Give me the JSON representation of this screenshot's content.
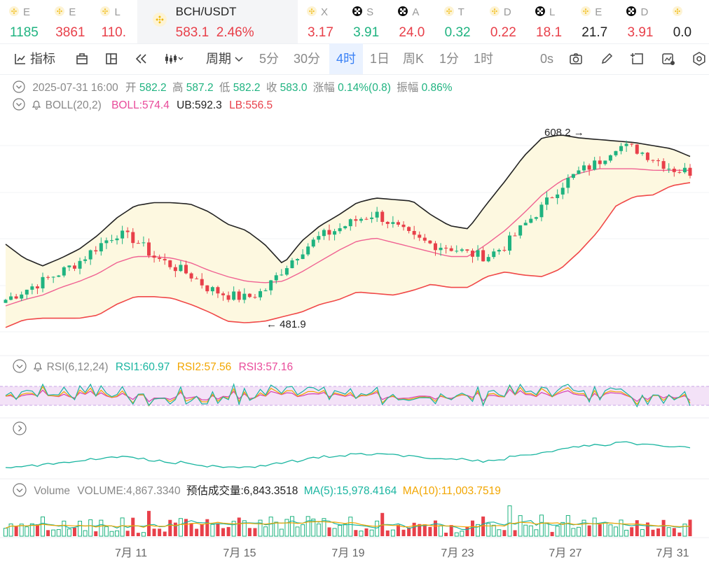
{
  "tickers": [
    {
      "sym": "E",
      "price": "1185",
      "color": "green",
      "icon": "binance-icon"
    },
    {
      "sym": "E",
      "price": "3861",
      "color": "red",
      "icon": "binance-icon"
    },
    {
      "sym": "L",
      "price": "110.",
      "color": "red",
      "icon": "binance-icon"
    }
  ],
  "active": {
    "pair": "BCH/USDT",
    "price": "583.1",
    "change": "2.46%",
    "icon": "binance-icon"
  },
  "tickers2": [
    {
      "sym": "X",
      "price": "3.17",
      "color": "red",
      "icon": "binance-icon"
    },
    {
      "sym": "S",
      "price": "3.91",
      "color": "green",
      "icon": "okx-icon"
    },
    {
      "sym": "A",
      "price": "24.0",
      "color": "red",
      "icon": "okx-icon"
    },
    {
      "sym": "T",
      "price": "0.32",
      "color": "green",
      "icon": "binance-icon"
    },
    {
      "sym": "D",
      "price": "0.22",
      "color": "red",
      "icon": "binance-icon"
    },
    {
      "sym": "L",
      "price": "18.1",
      "color": "red",
      "icon": "okx-icon"
    },
    {
      "sym": "E",
      "price": "21.7",
      "color": "dark",
      "icon": "binance-icon"
    },
    {
      "sym": "D",
      "price": "3.91",
      "color": "red",
      "icon": "okx-icon"
    },
    {
      "sym": "",
      "price": "0.0",
      "color": "dark",
      "icon": "binance-icon"
    }
  ],
  "toolbar": {
    "indicator": "指标",
    "period": "周期",
    "p1": "5分",
    "p2": "30分",
    "p3": "4时",
    "p4": "1日",
    "p5": "周K",
    "p6": "1分",
    "p7": "1时",
    "zero": "0s"
  },
  "ohlc": {
    "date": "2025-07-31 16:00",
    "open_l": "开",
    "open": "582.2",
    "high_l": "高",
    "high": "587.2",
    "low_l": "低",
    "low": "582.2",
    "close_l": "收",
    "close": "583.0",
    "chg_l": "涨幅",
    "chg": "0.14%(0.8)",
    "amp_l": "振幅",
    "amp": "0.86%"
  },
  "boll": {
    "name": "BOLL(20,2)",
    "boll": "BOLL:574.4",
    "ub": "UB:592.3",
    "lb": "LB:556.5"
  },
  "rsi": {
    "name": "RSI(6,12,24)",
    "r1": "RSI1:60.97",
    "r2": "RSI2:57.56",
    "r3": "RSI3:57.16"
  },
  "vol": {
    "name": "Volume",
    "v": "VOLUME:4,867.3340",
    "est": "预估成交量:6,843.3518",
    "ma5": "MA(5):15,978.4164",
    "ma10": "MA(10):11,003.7519"
  },
  "marks": {
    "high": "608.2",
    "low": "481.9"
  },
  "colors": {
    "up": "#1fb380",
    "down": "#e8404a",
    "mid": "#f06292",
    "upper": "#222222",
    "lower": "#f04848",
    "band": "#fdf8e0",
    "rsi1": "#19b5a0",
    "rsi2": "#f2a600",
    "rsi3": "#d63fb0"
  },
  "chart_data": {
    "type": "candlestick",
    "interval": "4h",
    "xticks": [
      "7月 11",
      "7月 15",
      "7月 19",
      "7月 23",
      "7月 27",
      "7月 31"
    ],
    "close_anchors": [
      500,
      506,
      512,
      518,
      525,
      535,
      543,
      539,
      528,
      522,
      516,
      507,
      503,
      501,
      506,
      520,
      532,
      541,
      546,
      552,
      556,
      548,
      540,
      536,
      534,
      530,
      528,
      535,
      548,
      560,
      574,
      583,
      589,
      600,
      598,
      592,
      585,
      583
    ],
    "boll_upper_anchors": [
      536,
      527,
      522,
      527,
      533,
      542,
      553,
      561,
      563,
      563,
      562,
      557,
      549,
      545,
      536,
      523,
      538,
      548,
      555,
      563,
      566,
      565,
      564,
      555,
      548,
      546,
      562,
      577,
      593,
      605,
      607,
      605,
      604,
      603,
      602,
      600,
      598,
      593
    ],
    "boll_lower_anchors": [
      482,
      487,
      488,
      488,
      488,
      490,
      497,
      502,
      502,
      501,
      497,
      492,
      486,
      485,
      486,
      489,
      492,
      497,
      500,
      505,
      504,
      503,
      506,
      510,
      508,
      508,
      515,
      518,
      516,
      515,
      520,
      531,
      544,
      561,
      567,
      568,
      574,
      576
    ],
    "boll_mid_anchors": [
      496,
      500,
      503,
      508,
      512,
      517,
      524,
      528,
      528,
      527,
      524,
      519,
      515,
      512,
      511,
      512,
      518,
      525,
      532,
      538,
      540,
      537,
      534,
      531,
      528,
      528,
      536,
      545,
      556,
      568,
      577,
      582,
      585,
      585,
      585,
      584,
      584,
      584
    ]
  }
}
